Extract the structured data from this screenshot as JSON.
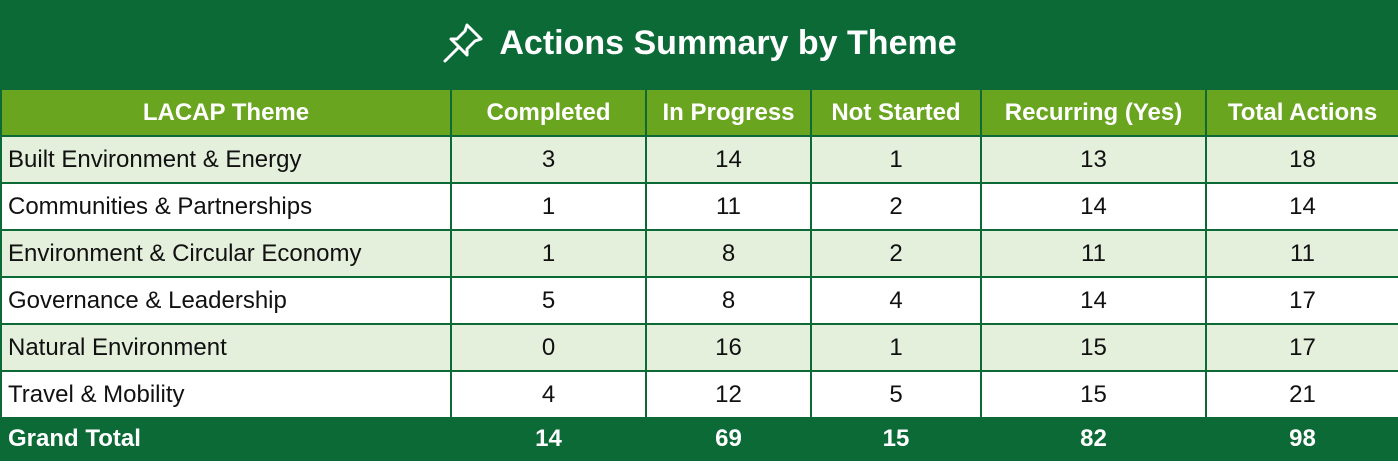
{
  "title": "Actions Summary by Theme",
  "table": {
    "header": [
      "LACAP Theme",
      "Completed",
      "In Progress",
      "Not Started",
      "Recurring (Yes)",
      "Total Actions"
    ],
    "rows": [
      [
        "Built Environment & Energy",
        3,
        14,
        1,
        13,
        18
      ],
      [
        "Communities & Partnerships",
        1,
        11,
        2,
        14,
        14
      ],
      [
        "Environment & Circular Economy",
        1,
        8,
        2,
        11,
        11
      ],
      [
        "Governance & Leadership",
        5,
        8,
        4,
        14,
        17
      ],
      [
        "Natural Environment",
        0,
        16,
        1,
        15,
        17
      ],
      [
        "Travel & Mobility",
        4,
        12,
        5,
        15,
        21
      ]
    ],
    "footer": [
      "Grand Total",
      14,
      69,
      15,
      82,
      98
    ]
  }
}
